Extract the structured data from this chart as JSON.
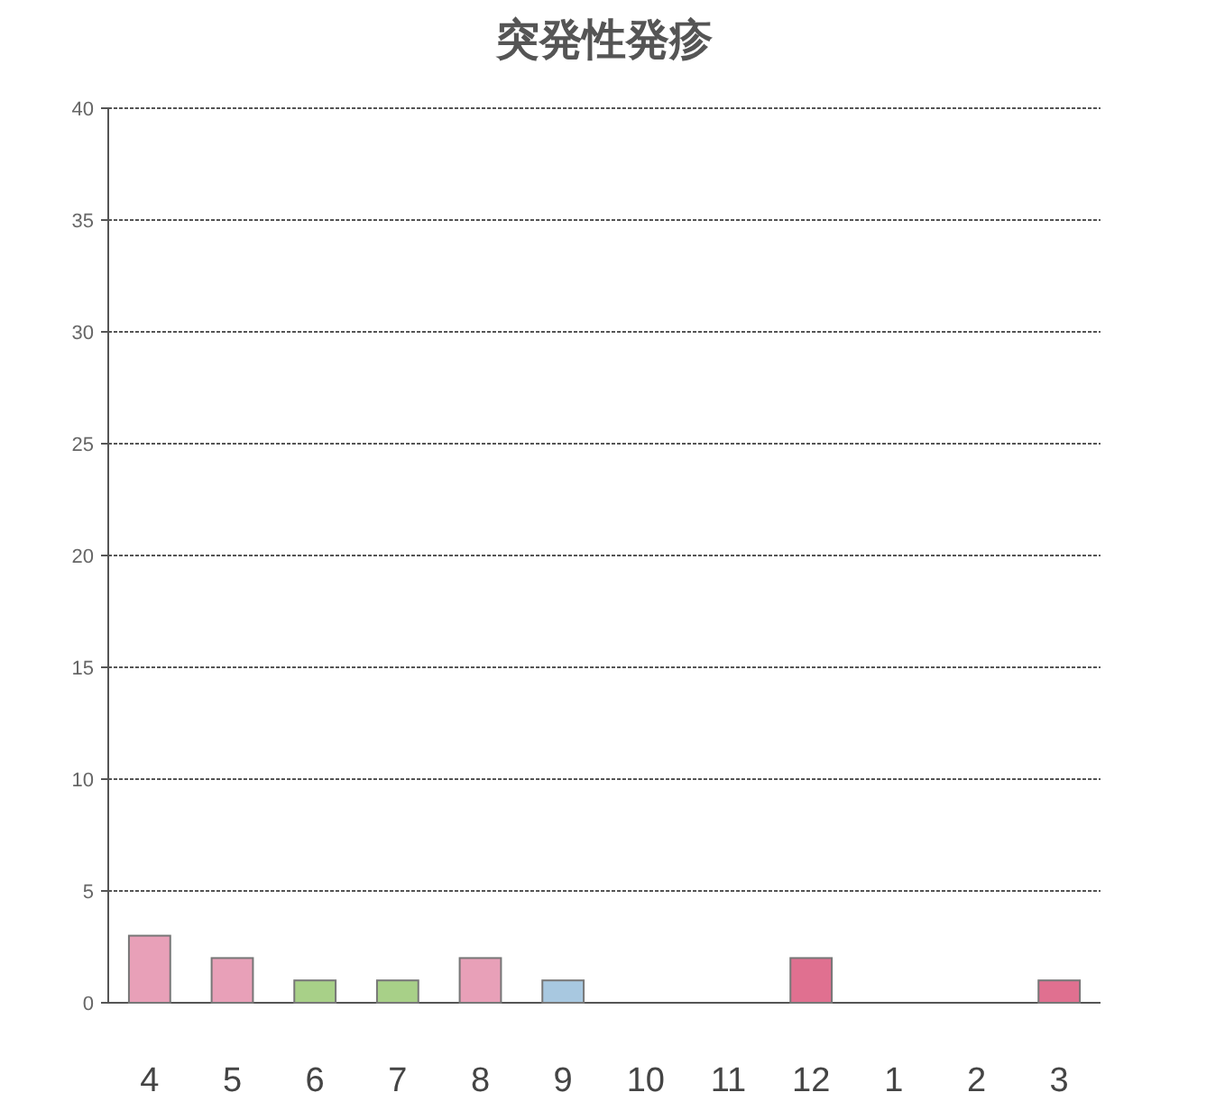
{
  "chart_data": {
    "type": "bar",
    "title": "突発性発疹",
    "categories": [
      "4",
      "5",
      "6",
      "7",
      "8",
      "9",
      "10",
      "11",
      "12",
      "1",
      "2",
      "3"
    ],
    "values": [
      3,
      2,
      1,
      1,
      2,
      1,
      0,
      0,
      2,
      0,
      0,
      1
    ],
    "colors": [
      "#e8a0b8",
      "#e8a0b8",
      "#a8d088",
      "#a8d088",
      "#e8a0b8",
      "#a8c8e0",
      "#e8a0b8",
      "#e8a0b8",
      "#e07090",
      "#e8a0b8",
      "#e8a0b8",
      "#e07090"
    ],
    "ylim": [
      0,
      40
    ],
    "yticks": [
      0,
      5,
      10,
      15,
      20,
      25,
      30,
      35,
      40
    ],
    "grid": "y"
  }
}
